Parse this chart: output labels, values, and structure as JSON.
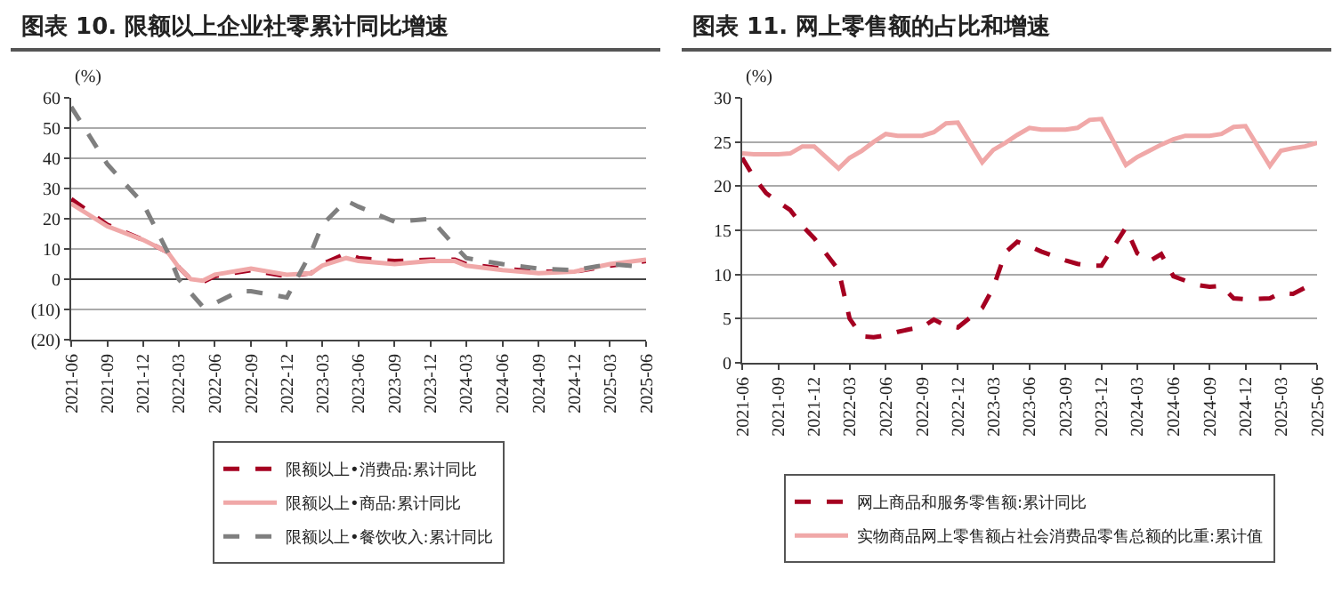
{
  "chart_data": [
    {
      "type": "line",
      "title": "图表 10. 限额以上企业社零累计同比增速",
      "ylabel": "(%)",
      "legend": "bottom",
      "grid": "y",
      "x": [
        "2021-06",
        "2021-09",
        "2021-12",
        "2022-02",
        "2022-03",
        "2022-04",
        "2022-05",
        "2022-06",
        "2022-09",
        "2022-12",
        "2023-02",
        "2023-03",
        "2023-05",
        "2023-06",
        "2023-09",
        "2023-12",
        "2024-02",
        "2024-03",
        "2024-06",
        "2024-09",
        "2024-12",
        "2025-03",
        "2025-06"
      ],
      "ylim": [
        -20,
        60
      ],
      "yticks": [
        {
          "value": -20,
          "label": "(20)"
        },
        {
          "value": -10,
          "label": "(10)"
        },
        0,
        10,
        20,
        30,
        40,
        50,
        60
      ],
      "xlim": [
        "2021-06",
        "2025-06"
      ],
      "xticks": [
        "2021-06",
        "2021-09",
        "2021-12",
        "2022-03",
        "2022-06",
        "2022-09",
        "2022-12",
        "2023-03",
        "2023-06",
        "2023-09",
        "2023-12",
        "2024-03",
        "2024-06",
        "2024-09",
        "2024-12",
        "2025-03",
        "2025-06"
      ],
      "series": [
        {
          "name": "限额以上•消费品:累计同比",
          "color": "#a50021",
          "line_style": "dashed",
          "values": [
            26.5,
            18,
            13,
            9,
            4,
            0,
            -1,
            1,
            3,
            1,
            2,
            5,
            8.5,
            7,
            6,
            6.5,
            6.5,
            5,
            3.5,
            2.5,
            2.5,
            4.5,
            6
          ]
        },
        {
          "name": "限额以上•商品:累计同比",
          "color": "#f0a8a8",
          "line_style": "solid",
          "values": [
            25,
            17.5,
            13,
            9,
            4,
            0,
            -0.5,
            1.5,
            3.5,
            1.5,
            2,
            4.5,
            7,
            6,
            5,
            6,
            6,
            4.5,
            3,
            2,
            2.5,
            5,
            6.5
          ]
        },
        {
          "name": "限额以上•餐饮收入:累计同比",
          "color": "#7f7f7f",
          "line_style": "dashed",
          "x": [
            "2021-06",
            "2021-09",
            "2021-12",
            "2022-02",
            "2022-03",
            "2022-05",
            "2022-06",
            "2022-08",
            "2022-09",
            "2022-12",
            "2023-02",
            "2023-03",
            "2023-05",
            "2023-06",
            "2023-09",
            "2023-12",
            "2024-02",
            "2024-03",
            "2024-06",
            "2024-09",
            "2024-12",
            "2025-03",
            "2025-06"
          ],
          "values": [
            57,
            38,
            25,
            9,
            0,
            -9,
            -8,
            -4,
            -4,
            -6,
            9,
            18,
            26,
            24,
            19,
            20,
            11,
            7,
            5,
            3.5,
            3,
            5,
            4
          ]
        }
      ]
    },
    {
      "type": "line",
      "title": "图表 11. 网上零售额的占比和增速",
      "ylabel": "(%)",
      "legend": "bottom",
      "grid": "y",
      "x": [
        "2021-06",
        "2021-07",
        "2021-08",
        "2021-09",
        "2021-10",
        "2021-11",
        "2021-12",
        "2022-02",
        "2022-03",
        "2022-04",
        "2022-05",
        "2022-06",
        "2022-07",
        "2022-08",
        "2022-09",
        "2022-10",
        "2022-11",
        "2022-12",
        "2023-02",
        "2023-03",
        "2023-04",
        "2023-05",
        "2023-06",
        "2023-07",
        "2023-08",
        "2023-09",
        "2023-10",
        "2023-11",
        "2023-12",
        "2024-02",
        "2024-03",
        "2024-04",
        "2024-05",
        "2024-06",
        "2024-07",
        "2024-08",
        "2024-09",
        "2024-10",
        "2024-11",
        "2024-12",
        "2025-02",
        "2025-03",
        "2025-04",
        "2025-05",
        "2025-06"
      ],
      "ylim": [
        0,
        30
      ],
      "yticks": [
        0,
        5,
        10,
        15,
        20,
        25,
        30
      ],
      "xlim": [
        "2021-06",
        "2025-06"
      ],
      "xticks": [
        "2021-06",
        "2021-09",
        "2021-12",
        "2022-03",
        "2022-06",
        "2022-09",
        "2022-12",
        "2023-03",
        "2023-06",
        "2023-09",
        "2023-12",
        "2024-03",
        "2024-06",
        "2024-09",
        "2024-12",
        "2025-03",
        "2025-06"
      ],
      "series": [
        {
          "name": "网上商品和服务零售额:累计同比",
          "color": "#a50021",
          "line_style": "dashed",
          "values": [
            23.2,
            21,
            19.2,
            18.2,
            17.3,
            15.5,
            14.1,
            10.5,
            5,
            3,
            2.9,
            3.1,
            3.5,
            3.8,
            4,
            4.9,
            4.2,
            4,
            6.2,
            8.5,
            12.5,
            13.7,
            13.2,
            12.6,
            12.1,
            11.6,
            11.2,
            11,
            11,
            15.3,
            12.4,
            11.5,
            12.3,
            9.8,
            9.3,
            8.8,
            8.6,
            8.7,
            7.3,
            7.2,
            7.3,
            7.9,
            7.8,
            8.5,
            8.5
          ]
        },
        {
          "name": "实物商品网上零售额占社会消费品零售总额的比重:累计值",
          "color": "#f0a8a8",
          "line_style": "solid",
          "values": [
            23.7,
            23.6,
            23.6,
            23.6,
            23.7,
            24.5,
            24.5,
            22,
            23.2,
            24,
            25,
            25.9,
            25.7,
            25.7,
            25.7,
            26.1,
            27.1,
            27.2,
            22.7,
            24.1,
            24.9,
            25.8,
            26.6,
            26.4,
            26.4,
            26.4,
            26.6,
            27.5,
            27.6,
            22.4,
            23.3,
            24,
            24.7,
            25.3,
            25.7,
            25.7,
            25.7,
            25.9,
            26.7,
            26.8,
            22.3,
            24,
            24.3,
            24.5,
            24.9
          ]
        }
      ]
    }
  ]
}
